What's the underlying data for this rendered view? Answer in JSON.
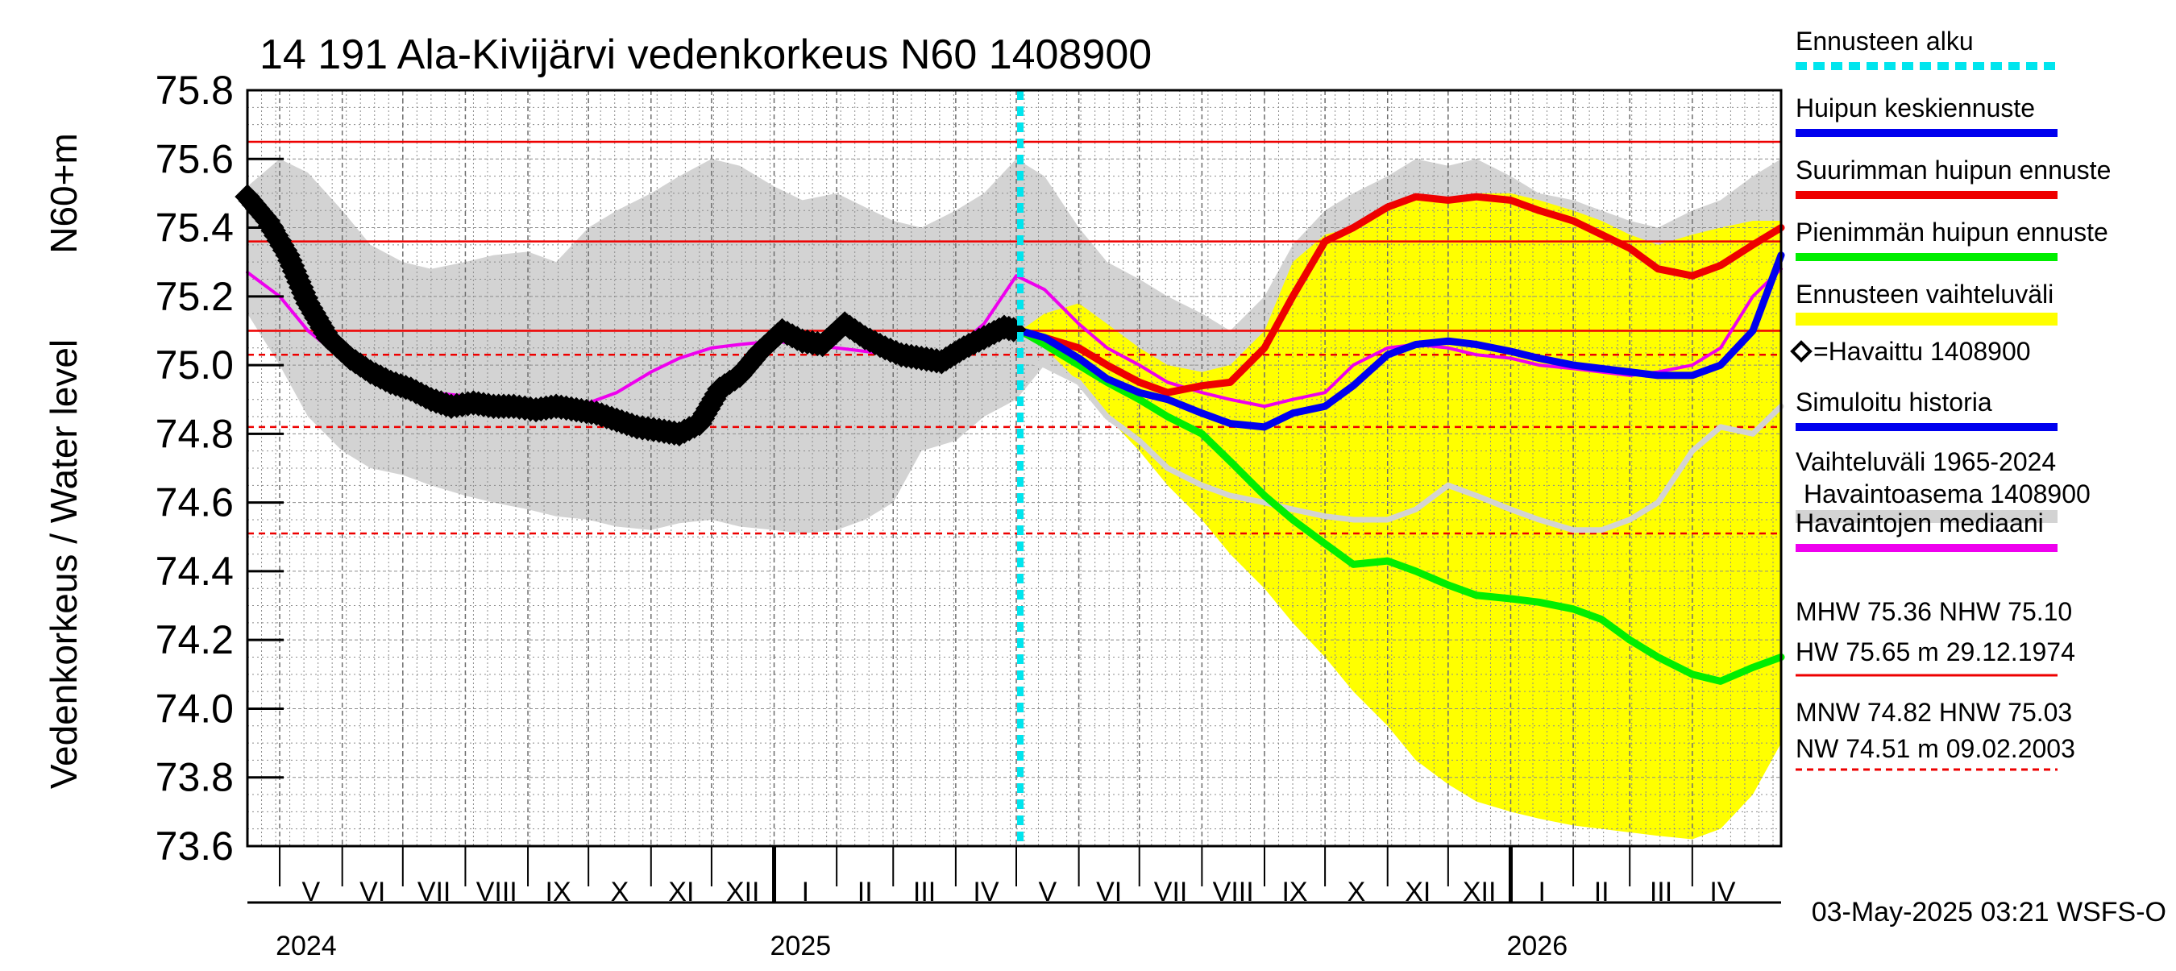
{
  "chart_data": {
    "type": "line",
    "title": "14 191 Ala-Kivijärvi vedenkorkeus N60 1408900",
    "ylabel": "Vedenkorkeus / Water level",
    "ylabel_unit": "N60+m",
    "ylim": [
      73.6,
      75.8
    ],
    "y_ticks": [
      "73.6",
      "73.8",
      "74.0",
      "74.2",
      "74.4",
      "74.6",
      "74.8",
      "75.0",
      "75.2",
      "75.4",
      "75.6",
      "75.8"
    ],
    "x_start": "2024-04-15",
    "x_end": "2026-05-15",
    "month_labels": [
      {
        "date": "2024-05-01",
        "label": "V"
      },
      {
        "date": "2024-06-01",
        "label": "VI"
      },
      {
        "date": "2024-07-01",
        "label": "VII"
      },
      {
        "date": "2024-08-01",
        "label": "VIII"
      },
      {
        "date": "2024-09-01",
        "label": "IX"
      },
      {
        "date": "2024-10-01",
        "label": "X"
      },
      {
        "date": "2024-11-01",
        "label": "XI"
      },
      {
        "date": "2024-12-01",
        "label": "XII"
      },
      {
        "date": "2025-01-01",
        "label": "I"
      },
      {
        "date": "2025-02-01",
        "label": "II"
      },
      {
        "date": "2025-03-01",
        "label": "III"
      },
      {
        "date": "2025-04-01",
        "label": "IV"
      },
      {
        "date": "2025-05-01",
        "label": "V"
      },
      {
        "date": "2025-06-01",
        "label": "VI"
      },
      {
        "date": "2025-07-01",
        "label": "VII"
      },
      {
        "date": "2025-08-01",
        "label": "VIII"
      },
      {
        "date": "2025-09-01",
        "label": "IX"
      },
      {
        "date": "2025-10-01",
        "label": "X"
      },
      {
        "date": "2025-11-01",
        "label": "XI"
      },
      {
        "date": "2025-12-01",
        "label": "XII"
      },
      {
        "date": "2026-01-01",
        "label": "I"
      },
      {
        "date": "2026-02-01",
        "label": "II"
      },
      {
        "date": "2026-03-01",
        "label": "III"
      },
      {
        "date": "2026-04-01",
        "label": "IV"
      }
    ],
    "year_labels": [
      {
        "date": "2024-05-01",
        "label": "2024"
      },
      {
        "date": "2025-01-01",
        "label": "2025"
      },
      {
        "date": "2026-01-01",
        "label": "2026"
      }
    ],
    "forecast_start": "2025-05-03",
    "reference_lines": [
      {
        "name": "HW",
        "value": 75.65,
        "style": "solid"
      },
      {
        "name": "MHW",
        "value": 75.36,
        "style": "solid"
      },
      {
        "name": "NHW",
        "value": 75.1,
        "style": "solid"
      },
      {
        "name": "HNW",
        "value": 75.03,
        "style": "dashed"
      },
      {
        "name": "MNW",
        "value": 74.82,
        "style": "dashed"
      },
      {
        "name": "NW",
        "value": 74.51,
        "style": "dashed"
      }
    ],
    "historical_range": {
      "x": [
        "2024-04-15",
        "2024-05-01",
        "2024-05-15",
        "2024-06-01",
        "2024-06-15",
        "2024-07-01",
        "2024-07-15",
        "2024-08-01",
        "2024-08-15",
        "2024-09-01",
        "2024-09-15",
        "2024-10-01",
        "2024-10-15",
        "2024-11-01",
        "2024-11-15",
        "2024-12-01",
        "2024-12-15",
        "2025-01-01",
        "2025-01-15",
        "2025-02-01",
        "2025-02-15",
        "2025-03-01",
        "2025-03-15",
        "2025-04-01",
        "2025-04-15",
        "2025-05-01",
        "2025-05-15",
        "2025-06-01",
        "2025-06-15",
        "2025-07-01",
        "2025-07-15",
        "2025-08-01",
        "2025-08-15",
        "2025-09-01",
        "2025-09-15",
        "2025-10-01",
        "2025-10-15",
        "2025-11-01",
        "2025-11-15",
        "2025-12-01",
        "2025-12-15",
        "2026-01-01",
        "2026-01-15",
        "2026-02-01",
        "2026-02-15",
        "2026-03-01",
        "2026-03-15",
        "2026-04-01",
        "2026-04-15",
        "2026-05-01",
        "2026-05-15"
      ],
      "upper": [
        75.52,
        75.6,
        75.56,
        75.45,
        75.35,
        75.3,
        75.28,
        75.3,
        75.32,
        75.33,
        75.3,
        75.4,
        75.45,
        75.5,
        75.55,
        75.6,
        75.58,
        75.52,
        75.48,
        75.5,
        75.46,
        75.42,
        75.4,
        75.45,
        75.5,
        75.6,
        75.55,
        75.4,
        75.3,
        75.25,
        75.2,
        75.15,
        75.1,
        75.2,
        75.35,
        75.45,
        75.5,
        75.55,
        75.6,
        75.58,
        75.6,
        75.55,
        75.5,
        75.48,
        75.45,
        75.42,
        75.4,
        75.45,
        75.48,
        75.55,
        75.6
      ],
      "lower": [
        75.15,
        75.0,
        74.85,
        74.75,
        74.7,
        74.68,
        74.65,
        74.62,
        74.6,
        74.58,
        74.56,
        74.55,
        74.53,
        74.52,
        74.54,
        74.55,
        74.53,
        74.52,
        74.51,
        74.52,
        74.55,
        74.6,
        74.75,
        74.78,
        74.85,
        74.9,
        75.0,
        74.95,
        74.85,
        74.8,
        74.75,
        74.7,
        74.65,
        74.62,
        74.6,
        74.58,
        74.56,
        74.55,
        74.55,
        74.54,
        74.54,
        74.53,
        74.52,
        74.52,
        74.53,
        74.55,
        74.6,
        74.7,
        74.8,
        74.85,
        74.9
      ]
    },
    "forecast_range": {
      "x": [
        "2025-05-03",
        "2025-05-15",
        "2025-06-01",
        "2025-06-15",
        "2025-07-01",
        "2025-07-15",
        "2025-08-01",
        "2025-08-15",
        "2025-09-01",
        "2025-09-15",
        "2025-10-01",
        "2025-10-15",
        "2025-11-01",
        "2025-11-15",
        "2025-12-01",
        "2025-12-15",
        "2026-01-01",
        "2026-01-15",
        "2026-02-01",
        "2026-02-15",
        "2026-03-01",
        "2026-03-15",
        "2026-04-01",
        "2026-04-15",
        "2026-05-01",
        "2026-05-15"
      ],
      "upper": [
        75.1,
        75.15,
        75.18,
        75.12,
        75.05,
        75.0,
        74.98,
        75.0,
        75.1,
        75.3,
        75.38,
        75.4,
        75.45,
        75.48,
        75.48,
        75.5,
        75.5,
        75.48,
        75.45,
        75.42,
        75.38,
        75.35,
        75.38,
        75.4,
        75.42,
        75.42
      ],
      "lower": [
        75.1,
        75.05,
        74.95,
        74.85,
        74.75,
        74.65,
        74.55,
        74.45,
        74.35,
        74.25,
        74.15,
        74.05,
        73.95,
        73.85,
        73.78,
        73.73,
        73.7,
        73.68,
        73.66,
        73.65,
        73.64,
        73.63,
        73.62,
        73.65,
        73.75,
        73.9
      ]
    },
    "series": [
      {
        "name": "Havaittu 1408900",
        "x": [
          "2024-04-15",
          "2024-04-25",
          "2024-05-05",
          "2024-05-15",
          "2024-05-25",
          "2024-06-05",
          "2024-06-15",
          "2024-06-25",
          "2024-07-05",
          "2024-07-15",
          "2024-07-25",
          "2024-08-05",
          "2024-08-15",
          "2024-08-25",
          "2024-09-05",
          "2024-09-15",
          "2024-09-25",
          "2024-10-05",
          "2024-10-15",
          "2024-10-25",
          "2024-11-05",
          "2024-11-15",
          "2024-11-25",
          "2024-12-05",
          "2024-12-15",
          "2024-12-25",
          "2025-01-05",
          "2025-01-15",
          "2025-01-25",
          "2025-02-05",
          "2025-02-15",
          "2025-02-25",
          "2025-03-05",
          "2025-03-15",
          "2025-03-25",
          "2025-04-05",
          "2025-04-15",
          "2025-04-25",
          "2025-05-02"
        ],
        "values": [
          75.49,
          75.42,
          75.32,
          75.18,
          75.08,
          75.02,
          74.98,
          74.95,
          74.93,
          74.9,
          74.88,
          74.89,
          74.88,
          74.88,
          74.87,
          74.88,
          74.87,
          74.86,
          74.84,
          74.82,
          74.81,
          74.8,
          74.83,
          74.93,
          74.97,
          75.04,
          75.1,
          75.07,
          75.06,
          75.12,
          75.08,
          75.05,
          75.03,
          75.02,
          75.01,
          75.05,
          75.08,
          75.11,
          75.1
        ]
      },
      {
        "name": "Havaintojen mediaani",
        "x": [
          "2024-04-15",
          "2024-05-01",
          "2024-05-15",
          "2024-06-01",
          "2024-06-15",
          "2024-07-01",
          "2024-07-15",
          "2024-08-01",
          "2024-08-15",
          "2024-09-01",
          "2024-09-15",
          "2024-10-01",
          "2024-10-15",
          "2024-11-01",
          "2024-11-15",
          "2024-12-01",
          "2024-12-15",
          "2025-01-01",
          "2025-01-15",
          "2025-02-01",
          "2025-02-15",
          "2025-03-01",
          "2025-03-15",
          "2025-04-01",
          "2025-04-15",
          "2025-05-01",
          "2025-05-15",
          "2025-06-01",
          "2025-06-15",
          "2025-07-01",
          "2025-07-15",
          "2025-08-01",
          "2025-08-15",
          "2025-09-01",
          "2025-09-15",
          "2025-10-01",
          "2025-10-15",
          "2025-11-01",
          "2025-11-15",
          "2025-12-01",
          "2025-12-15",
          "2026-01-01",
          "2026-01-15",
          "2026-02-01",
          "2026-02-15",
          "2026-03-01",
          "2026-03-15",
          "2026-04-01",
          "2026-04-15",
          "2026-05-01",
          "2026-05-15"
        ],
        "values": [
          75.27,
          75.2,
          75.1,
          75.02,
          74.98,
          74.95,
          74.92,
          74.91,
          74.9,
          74.89,
          74.88,
          74.89,
          74.92,
          74.98,
          75.02,
          75.05,
          75.06,
          75.07,
          75.06,
          75.05,
          75.04,
          75.03,
          75.0,
          75.05,
          75.12,
          75.26,
          75.22,
          75.12,
          75.05,
          75.0,
          74.95,
          74.92,
          74.9,
          74.88,
          74.9,
          74.92,
          75.0,
          75.05,
          75.06,
          75.05,
          75.03,
          75.02,
          75.0,
          74.99,
          74.98,
          74.97,
          74.98,
          75.0,
          75.05,
          75.2,
          75.28
        ]
      },
      {
        "name": "Simuloitu historia",
        "x": [
          "2025-04-25",
          "2025-05-03"
        ],
        "values": [
          75.09,
          75.1
        ]
      },
      {
        "name": "Suurimman huipun ennuste",
        "x": [
          "2025-05-03",
          "2025-05-15",
          "2025-06-01",
          "2025-06-15",
          "2025-07-01",
          "2025-07-15",
          "2025-08-01",
          "2025-08-15",
          "2025-09-01",
          "2025-09-15",
          "2025-10-01",
          "2025-10-15",
          "2025-11-01",
          "2025-11-15",
          "2025-12-01",
          "2025-12-15",
          "2026-01-01",
          "2026-01-15",
          "2026-02-01",
          "2026-02-15",
          "2026-03-01",
          "2026-03-15",
          "2026-04-01",
          "2026-04-15",
          "2026-05-01",
          "2026-05-15"
        ],
        "values": [
          75.1,
          75.08,
          75.05,
          75.0,
          74.95,
          74.92,
          74.94,
          74.95,
          75.05,
          75.2,
          75.36,
          75.4,
          75.46,
          75.49,
          75.48,
          75.49,
          75.48,
          75.45,
          75.42,
          75.38,
          75.34,
          75.28,
          75.26,
          75.29,
          75.35,
          75.4
        ]
      },
      {
        "name": "Huipun keskiennuste",
        "x": [
          "2025-05-03",
          "2025-05-15",
          "2025-06-01",
          "2025-06-15",
          "2025-07-01",
          "2025-07-15",
          "2025-08-01",
          "2025-08-15",
          "2025-09-01",
          "2025-09-15",
          "2025-10-01",
          "2025-10-15",
          "2025-11-01",
          "2025-11-15",
          "2025-12-01",
          "2025-12-15",
          "2026-01-01",
          "2026-01-15",
          "2026-02-01",
          "2026-02-15",
          "2026-03-01",
          "2026-03-15",
          "2026-04-01",
          "2026-04-15",
          "2026-05-01",
          "2026-05-15"
        ],
        "values": [
          75.1,
          75.08,
          75.02,
          74.96,
          74.92,
          74.9,
          74.86,
          74.83,
          74.82,
          74.86,
          74.88,
          74.94,
          75.03,
          75.06,
          75.07,
          75.06,
          75.04,
          75.02,
          75.0,
          74.99,
          74.98,
          74.97,
          74.97,
          75.0,
          75.1,
          75.32
        ]
      },
      {
        "name": "Pienimmän huipun ennuste",
        "x": [
          "2025-05-03",
          "2025-05-15",
          "2025-06-01",
          "2025-06-15",
          "2025-07-01",
          "2025-07-15",
          "2025-08-01",
          "2025-08-15",
          "2025-09-01",
          "2025-09-15",
          "2025-10-01",
          "2025-10-15",
          "2025-11-01",
          "2025-11-15",
          "2025-12-01",
          "2025-12-15",
          "2026-01-01",
          "2026-01-15",
          "2026-02-01",
          "2026-02-15",
          "2026-03-01",
          "2026-03-15",
          "2026-04-01",
          "2026-04-15",
          "2026-05-01",
          "2026-05-15"
        ],
        "values": [
          75.1,
          75.06,
          75.0,
          74.95,
          74.9,
          74.85,
          74.8,
          74.72,
          74.62,
          74.55,
          74.48,
          74.42,
          74.43,
          74.4,
          74.36,
          74.33,
          74.32,
          74.31,
          74.29,
          74.26,
          74.2,
          74.15,
          74.1,
          74.08,
          74.12,
          74.15
        ]
      },
      {
        "name": "Vaihteluväli 1965-2024 Havaintoasema 1408900",
        "x": [
          "2025-05-03",
          "2025-05-15",
          "2025-06-01",
          "2025-06-15",
          "2025-07-01",
          "2025-07-15",
          "2025-08-01",
          "2025-08-15",
          "2025-09-01",
          "2025-09-15",
          "2025-10-01",
          "2025-10-15",
          "2025-11-01",
          "2025-11-15",
          "2025-12-01",
          "2025-12-15",
          "2026-01-01",
          "2026-01-15",
          "2026-02-01",
          "2026-02-15",
          "2026-03-01",
          "2026-03-15",
          "2026-04-01",
          "2026-04-15",
          "2026-05-01",
          "2026-05-15"
        ],
        "values": [
          75.02,
          75.0,
          74.95,
          74.85,
          74.78,
          74.7,
          74.65,
          74.62,
          74.6,
          74.58,
          74.56,
          74.55,
          74.55,
          74.58,
          74.65,
          74.62,
          74.58,
          74.55,
          74.52,
          74.52,
          74.55,
          74.6,
          74.75,
          74.82,
          74.8,
          74.88
        ]
      }
    ],
    "legend": [
      {
        "label": "Ennusteen alku",
        "color": "#00e5ee",
        "style": "dashed"
      },
      {
        "label": "Huipun keskiennuste",
        "color": "#0000ee",
        "style": "solid"
      },
      {
        "label": "Suurimman huipun ennuste",
        "color": "#ee0000",
        "style": "solid"
      },
      {
        "label": "Pienimmän huipun ennuste",
        "color": "#00ee00",
        "style": "solid"
      },
      {
        "label": "Ennusteen vaihteluväli",
        "color": "#ffff00",
        "style": "band"
      },
      {
        "label": "=Havaittu 1408900",
        "color": "#000000",
        "style": "diamond"
      },
      {
        "label": "Simuloitu historia",
        "color": "#0000ee",
        "style": "solid"
      },
      {
        "label": "Vaihteluväli 1965-2024",
        "label2": "Havaintoasema 1408900",
        "color": "#d3d3d3",
        "style": "band"
      },
      {
        "label": "Havaintojen mediaani",
        "color": "#ee00ee",
        "style": "solid"
      }
    ],
    "stats": {
      "high_line1": "MHW  75.36 NHW  75.10",
      "high_line2": "HW  75.65 m 29.12.1974",
      "low_line1": "MNW  74.82 HNW  75.03",
      "low_line2": "NW  74.51 m 09.02.2003"
    },
    "footer": "03-May-2025 03:21 WSFS-O",
    "colors": {
      "historical_band": "#d3d3d3",
      "forecast_band": "#ffff00",
      "observed": "#000000",
      "median": "#ee00ee",
      "max_forecast": "#ee0000",
      "mean_forecast": "#0000ee",
      "min_forecast": "#00ee00",
      "forecast_start": "#00e5ee",
      "reference": "#ee0000",
      "grid": "#8c8c8c"
    }
  }
}
